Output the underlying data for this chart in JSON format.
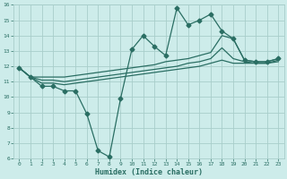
{
  "xlabel": "Humidex (Indice chaleur)",
  "x_main": [
    0,
    1,
    2,
    3,
    4,
    5,
    6,
    7,
    8,
    9,
    10,
    11,
    12,
    13,
    14,
    15,
    16,
    17,
    18,
    19,
    20,
    21,
    22,
    23
  ],
  "y_main": [
    11.9,
    11.3,
    10.7,
    10.7,
    10.4,
    10.4,
    8.9,
    6.5,
    6.1,
    9.9,
    13.1,
    14.0,
    13.3,
    12.7,
    15.8,
    14.7,
    15.0,
    15.4,
    14.3,
    13.8,
    12.4,
    12.3,
    12.3,
    12.5
  ],
  "x_upper": [
    0,
    1,
    2,
    3,
    4,
    5,
    6,
    7,
    8,
    9,
    10,
    11,
    12,
    13,
    14,
    15,
    16,
    17,
    18,
    19,
    20,
    21,
    22,
    23
  ],
  "y_upper": [
    11.9,
    11.3,
    11.3,
    11.3,
    11.3,
    11.4,
    11.5,
    11.6,
    11.7,
    11.8,
    11.9,
    12.0,
    12.1,
    12.3,
    12.4,
    12.5,
    12.7,
    12.9,
    14.0,
    13.8,
    12.4,
    12.3,
    12.3,
    12.5
  ],
  "x_mid": [
    0,
    1,
    2,
    3,
    4,
    5,
    6,
    7,
    8,
    9,
    10,
    11,
    12,
    13,
    14,
    15,
    16,
    17,
    18,
    19,
    20,
    21,
    22,
    23
  ],
  "y_mid": [
    11.9,
    11.3,
    11.1,
    11.1,
    11.0,
    11.1,
    11.2,
    11.3,
    11.4,
    11.5,
    11.6,
    11.7,
    11.8,
    11.9,
    12.0,
    12.2,
    12.3,
    12.5,
    13.2,
    12.5,
    12.3,
    12.2,
    12.2,
    12.4
  ],
  "x_lower": [
    0,
    1,
    2,
    3,
    4,
    5,
    6,
    7,
    8,
    9,
    10,
    11,
    12,
    13,
    14,
    15,
    16,
    17,
    18,
    19,
    20,
    21,
    22,
    23
  ],
  "y_lower": [
    11.9,
    11.3,
    10.9,
    10.9,
    10.8,
    10.9,
    11.0,
    11.1,
    11.2,
    11.3,
    11.4,
    11.5,
    11.6,
    11.7,
    11.8,
    11.9,
    12.0,
    12.2,
    12.4,
    12.2,
    12.2,
    12.2,
    12.2,
    12.3
  ],
  "color": "#2a6e63",
  "bg_color": "#cdecea",
  "grid_color": "#a8ceca",
  "ylim": [
    6,
    16
  ],
  "xlim": [
    -0.5,
    23.5
  ],
  "yticks": [
    6,
    7,
    8,
    9,
    10,
    11,
    12,
    13,
    14,
    15,
    16
  ],
  "xticks": [
    0,
    1,
    2,
    3,
    4,
    5,
    6,
    7,
    8,
    9,
    10,
    11,
    12,
    13,
    14,
    15,
    16,
    17,
    18,
    19,
    20,
    21,
    22,
    23
  ],
  "markersize": 2.5,
  "linewidth": 0.9
}
